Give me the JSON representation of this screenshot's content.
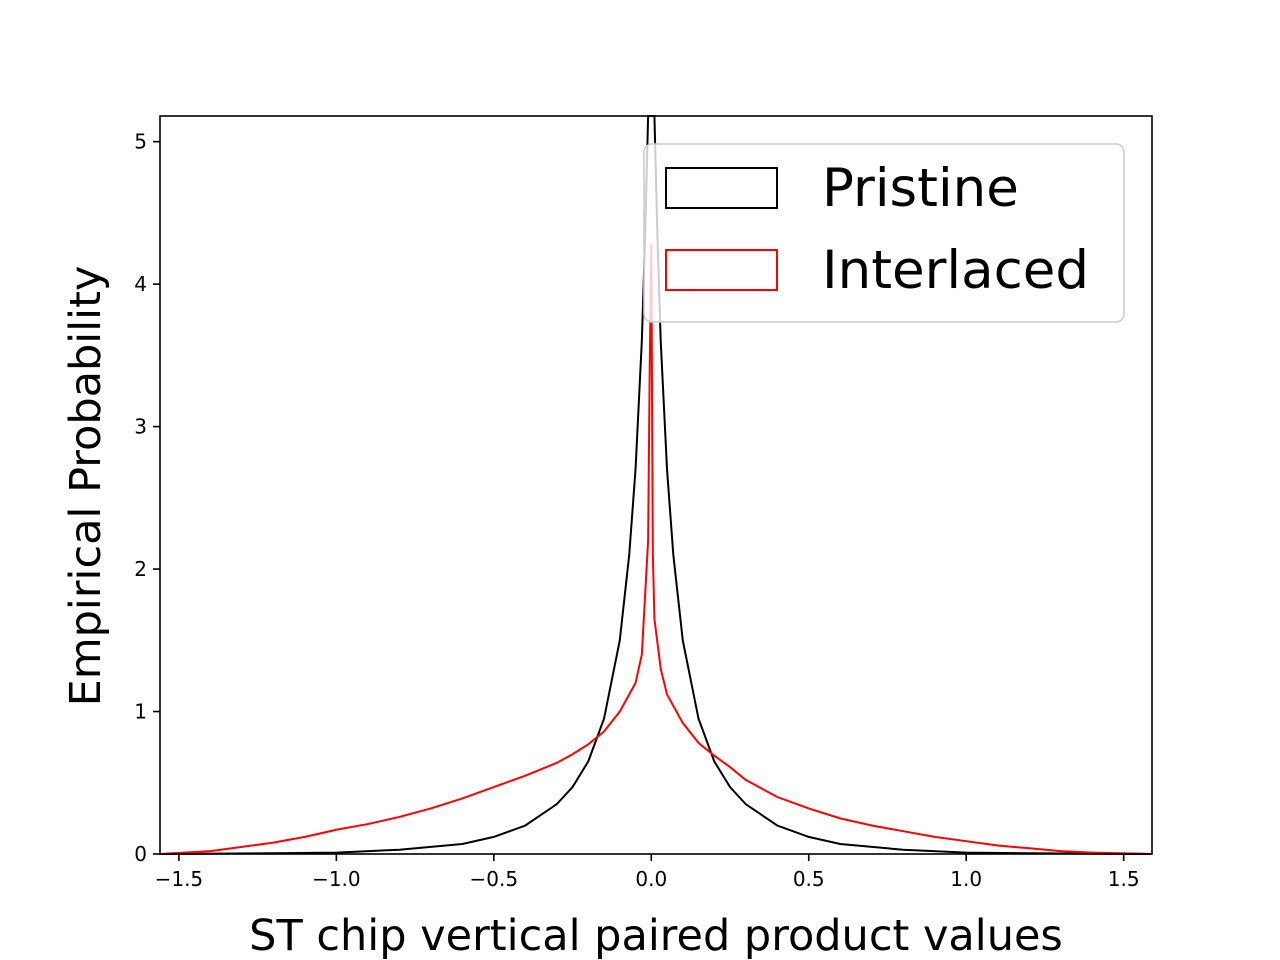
{
  "chart_data": {
    "type": "line",
    "title": "",
    "xlabel": "ST chip vertical paired product values",
    "ylabel": "Empirical Probability",
    "xlim": [
      -1.56,
      1.59
    ],
    "ylim": [
      0,
      5.18
    ],
    "grid": false,
    "legend_placement": "top-right",
    "x_ticks": [
      {
        "value": -1.5,
        "label": "−1.5"
      },
      {
        "value": -1.0,
        "label": "−1.0"
      },
      {
        "value": -0.5,
        "label": "−0.5"
      },
      {
        "value": 0.0,
        "label": "0.0"
      },
      {
        "value": 0.5,
        "label": "0.5"
      },
      {
        "value": 1.0,
        "label": "1.0"
      },
      {
        "value": 1.5,
        "label": "1.5"
      }
    ],
    "y_ticks": [
      {
        "value": 0,
        "label": "0"
      },
      {
        "value": 1,
        "label": "1"
      },
      {
        "value": 2,
        "label": "2"
      },
      {
        "value": 3,
        "label": "3"
      },
      {
        "value": 4,
        "label": "4"
      },
      {
        "value": 5,
        "label": "5"
      }
    ],
    "series": [
      {
        "name": "Pristine",
        "color": "#000000",
        "x": [
          -1.56,
          -1.2,
          -1.0,
          -0.8,
          -0.6,
          -0.5,
          -0.4,
          -0.3,
          -0.25,
          -0.2,
          -0.15,
          -0.1,
          -0.07,
          -0.05,
          -0.03,
          -0.02,
          -0.01,
          -0.005,
          0.0,
          0.005,
          0.01,
          0.02,
          0.03,
          0.05,
          0.07,
          0.1,
          0.15,
          0.2,
          0.25,
          0.3,
          0.4,
          0.5,
          0.6,
          0.8,
          1.0,
          1.2,
          1.59
        ],
        "y": [
          0.0,
          0.005,
          0.01,
          0.03,
          0.07,
          0.12,
          0.2,
          0.35,
          0.47,
          0.65,
          0.95,
          1.5,
          2.1,
          2.7,
          3.6,
          4.3,
          5.18,
          5.18,
          5.18,
          5.18,
          5.18,
          4.3,
          3.6,
          2.7,
          2.1,
          1.5,
          0.95,
          0.65,
          0.47,
          0.35,
          0.2,
          0.12,
          0.07,
          0.03,
          0.01,
          0.005,
          0.0
        ]
      },
      {
        "name": "Interlaced",
        "color": "#ff0000",
        "x": [
          -1.56,
          -1.4,
          -1.3,
          -1.2,
          -1.1,
          -1.0,
          -0.9,
          -0.8,
          -0.7,
          -0.6,
          -0.5,
          -0.4,
          -0.3,
          -0.25,
          -0.2,
          -0.15,
          -0.1,
          -0.05,
          -0.03,
          -0.01,
          -0.005,
          0.0,
          0.005,
          0.01,
          0.03,
          0.05,
          0.1,
          0.15,
          0.2,
          0.25,
          0.3,
          0.4,
          0.5,
          0.6,
          0.7,
          0.8,
          0.9,
          1.0,
          1.1,
          1.2,
          1.3,
          1.4,
          1.59
        ],
        "y": [
          0.0,
          0.02,
          0.05,
          0.08,
          0.12,
          0.17,
          0.21,
          0.26,
          0.32,
          0.39,
          0.47,
          0.55,
          0.64,
          0.7,
          0.77,
          0.86,
          1.0,
          1.2,
          1.4,
          2.2,
          3.4,
          4.28,
          2.1,
          1.65,
          1.3,
          1.12,
          0.92,
          0.78,
          0.69,
          0.61,
          0.52,
          0.4,
          0.32,
          0.25,
          0.2,
          0.16,
          0.12,
          0.09,
          0.06,
          0.04,
          0.02,
          0.01,
          0.0
        ]
      }
    ]
  }
}
